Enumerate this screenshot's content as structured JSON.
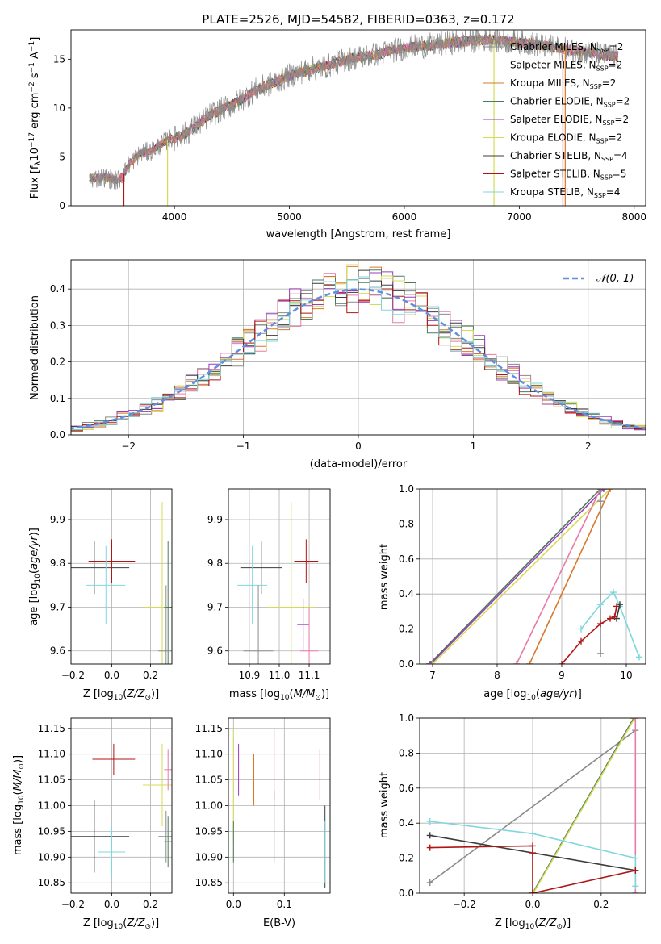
{
  "figure": {
    "title": "PLATE=2526, MJD=54582, FIBERID=0363, z=0.172"
  },
  "colors": {
    "grid": "#b0b0b0",
    "axis": "#000000",
    "normal_curve": "#5e8fde"
  },
  "series_legend": [
    {
      "name": "Chabrier MILES, N",
      "nssp": "2",
      "color": "#8a8a8a"
    },
    {
      "name": "Salpeter MILES, N",
      "nssp": "2",
      "color": "#e87aa7"
    },
    {
      "name": "Kroupa MILES, N",
      "nssp": "2",
      "color": "#d9782a"
    },
    {
      "name": "Chabrier ELODIE, N",
      "nssp": "2",
      "color": "#4c7a5a"
    },
    {
      "name": "Salpeter ELODIE, N",
      "nssp": "2",
      "color": "#9a3dbd"
    },
    {
      "name": "Kroupa ELODIE, N",
      "nssp": "2",
      "color": "#d4dc55"
    },
    {
      "name": "Chabrier STELIB, N",
      "nssp": "4",
      "color": "#3c3c3c"
    },
    {
      "name": "Salpeter STELIB, N",
      "nssp": "5",
      "color": "#b01515"
    },
    {
      "name": "Kroupa STELIB, N",
      "nssp": "4",
      "color": "#7fd6de"
    }
  ],
  "chart_data": [
    {
      "id": "spectrum",
      "type": "line",
      "xlabel": "wavelength [Angstrom, rest frame]",
      "ylabel": "Flux [f",
      "ylabel_full": "Flux [fλ10⁻¹⁷ erg cm⁻² s⁻¹ Å⁻¹]",
      "xlim": [
        3100,
        8100
      ],
      "ylim": [
        0,
        18
      ],
      "xticks": [
        4000,
        5000,
        6000,
        7000,
        8000
      ],
      "yticks": [
        0,
        5,
        10,
        15
      ],
      "grid": false,
      "legend_position": "top-right",
      "envelope_x": [
        3300,
        3400,
        3500,
        3550,
        3600,
        3700,
        3800,
        3900,
        3950,
        4000,
        4100,
        4200,
        4300,
        4400,
        4500,
        4600,
        4700,
        4800,
        4900,
        5000,
        5100,
        5200,
        5300,
        5400,
        5500,
        5600,
        5700,
        5800,
        5900,
        6000,
        6100,
        6200,
        6300,
        6400,
        6500,
        6600,
        6700,
        6800,
        6900,
        7000,
        7100,
        7200,
        7300,
        7400,
        7500,
        7600,
        7700,
        7800
      ],
      "envelope_y": [
        2.8,
        2.9,
        2.6,
        3.0,
        4.2,
        5.3,
        5.6,
        6.4,
        6.8,
        6.9,
        7.4,
        8.3,
        9.2,
        9.8,
        10.3,
        11.0,
        11.8,
        12.3,
        12.8,
        13.3,
        13.7,
        14.0,
        14.2,
        14.6,
        15.0,
        15.2,
        15.4,
        15.6,
        15.9,
        16.1,
        16.3,
        16.4,
        16.5,
        16.7,
        16.8,
        16.9,
        17.0,
        16.9,
        16.8,
        16.7,
        16.6,
        16.4,
        16.2,
        16.0,
        15.8,
        15.7,
        15.5,
        15.3
      ]
    },
    {
      "id": "residuals",
      "type": "histogram",
      "xlabel": "(data-model)/error",
      "ylabel": "Normed distribution",
      "xlim": [
        -2.5,
        2.5
      ],
      "ylim": [
        0,
        0.48
      ],
      "xticks": [
        -2,
        -1,
        0,
        1,
        2
      ],
      "yticks": [
        0.0,
        0.1,
        0.2,
        0.3,
        0.4
      ],
      "grid": true,
      "legend": "𝒩(0, 1)",
      "legend_position": "top-right",
      "bin_width": 0.1,
      "normal_mean": 0,
      "normal_sigma": 1
    },
    {
      "id": "age_vs_Z",
      "type": "scatter",
      "xlabel": "Z [log",
      "ylabel": "age  [log",
      "xlim": [
        -0.21,
        0.31
      ],
      "ylim": [
        9.57,
        9.97
      ],
      "xticks": [
        -0.2,
        0.0,
        0.2
      ],
      "yticks": [
        9.6,
        9.7,
        9.8,
        9.9
      ],
      "grid": true,
      "points": [
        {
          "series": "Chabrier STELIB",
          "x": -0.09,
          "y": 9.79,
          "ex": 0.18,
          "ey": 0.06
        },
        {
          "series": "Salpeter STELIB",
          "x": 0.0,
          "y": 9.805,
          "ex": 0.12,
          "ey": 0.05
        },
        {
          "series": "Kroupa STELIB",
          "x": -0.03,
          "y": 9.75,
          "ex": 0.1,
          "ey": 0.09
        },
        {
          "series": "Kroupa ELODIE",
          "x": 0.26,
          "y": 9.7,
          "ex": 0.1,
          "ey": 0.24
        },
        {
          "series": "Chabrier ELODIE",
          "x": 0.29,
          "y": 9.7,
          "ex": 0.02,
          "ey": 0.15
        },
        {
          "series": "Chabrier MILES",
          "x": 0.28,
          "y": 9.6,
          "ex": 0.04,
          "ey": 0.15
        }
      ]
    },
    {
      "id": "age_vs_mass",
      "type": "scatter",
      "xlabel": "mass [log",
      "xlim": [
        10.83,
        11.17
      ],
      "ylim": [
        9.57,
        9.97
      ],
      "xticks": [
        10.9,
        11.0,
        11.1
      ],
      "yticks": [
        9.6,
        9.7,
        9.8,
        9.9
      ],
      "grid": true,
      "points": [
        {
          "series": "Chabrier STELIB",
          "x": 10.94,
          "y": 9.79,
          "ex": 0.07,
          "ey": 0.06
        },
        {
          "series": "Salpeter STELIB",
          "x": 11.09,
          "y": 9.805,
          "ex": 0.04,
          "ey": 0.05
        },
        {
          "series": "Kroupa STELIB",
          "x": 10.91,
          "y": 9.75,
          "ex": 0.05,
          "ey": 0.09
        },
        {
          "series": "Kroupa ELODIE",
          "x": 11.04,
          "y": 9.7,
          "ex": 0.08,
          "ey": 0.24
        },
        {
          "series": "Salpeter ELODIE",
          "x": 11.08,
          "y": 9.66,
          "ex": 0.02,
          "ey": 0.06
        },
        {
          "series": "Salpeter MILES",
          "x": 11.1,
          "y": 9.6,
          "ex": 0.03,
          "ey": 0.1
        },
        {
          "series": "Chabrier MILES",
          "x": 10.93,
          "y": 9.6,
          "ex": 0.05,
          "ey": 0.15
        }
      ]
    },
    {
      "id": "mass_weight_vs_age",
      "type": "line",
      "xlabel": "age  [log",
      "ylabel": "mass weight",
      "xlim": [
        6.8,
        10.3
      ],
      "ylim": [
        0,
        1
      ],
      "xticks": [
        7,
        8,
        9,
        10
      ],
      "yticks": [
        0.0,
        0.2,
        0.4,
        0.6,
        0.8,
        1.0
      ],
      "grid": true,
      "series": [
        {
          "name": "Chabrier ELODIE",
          "x": [
            6.95,
            9.6
          ],
          "y": [
            0,
            1
          ]
        },
        {
          "name": "Salpeter ELODIE",
          "x": [
            6.97,
            9.65
          ],
          "y": [
            0,
            1
          ]
        },
        {
          "name": "Kroupa ELODIE",
          "x": [
            7.0,
            9.75
          ],
          "y": [
            0,
            1
          ]
        },
        {
          "name": "Salpeter MILES",
          "x": [
            8.3,
            9.6
          ],
          "y": [
            0,
            1
          ]
        },
        {
          "name": "Kroupa MILES",
          "x": [
            8.5,
            9.75
          ],
          "y": [
            0,
            1
          ]
        },
        {
          "name": "Chabrier MILES",
          "x": [
            9.6,
            9.6,
            9.6
          ],
          "y": [
            0.06,
            0.93,
            1.0
          ]
        },
        {
          "name": "Kroupa STELIB",
          "x": [
            9.3,
            9.6,
            9.8,
            9.9,
            10.2
          ],
          "y": [
            0.2,
            0.34,
            0.41,
            0.33,
            0.04
          ]
        },
        {
          "name": "Salpeter STELIB",
          "x": [
            9.0,
            9.3,
            9.6,
            9.75,
            9.82,
            9.85
          ],
          "y": [
            0.0,
            0.13,
            0.23,
            0.26,
            0.27,
            0.33
          ]
        },
        {
          "name": "Chabrier STELIB",
          "x": [
            9.85,
            9.9
          ],
          "y": [
            0.26,
            0.34
          ]
        }
      ]
    },
    {
      "id": "mass_vs_Z",
      "type": "scatter",
      "xlabel": "Z [log",
      "ylabel": "mass [log",
      "xlim": [
        -0.21,
        0.31
      ],
      "ylim": [
        10.83,
        11.17
      ],
      "xticks": [
        -0.2,
        0.0,
        0.2
      ],
      "yticks": [
        10.85,
        10.9,
        10.95,
        11.0,
        11.05,
        11.1,
        11.15
      ],
      "grid": true,
      "points": [
        {
          "series": "Chabrier STELIB",
          "x": -0.09,
          "y": 10.94,
          "ex": 0.18,
          "ey": 0.07
        },
        {
          "series": "Kroupa STELIB",
          "x": 0.0,
          "y": 10.91,
          "ex": 0.07,
          "ey": 0.05
        },
        {
          "series": "Salpeter STELIB",
          "x": 0.01,
          "y": 11.09,
          "ex": 0.11,
          "ey": 0.03
        },
        {
          "series": "Kroupa ELODIE",
          "x": 0.26,
          "y": 11.04,
          "ex": 0.1,
          "ey": 0.08
        },
        {
          "series": "Salpeter MILES",
          "x": 0.29,
          "y": 11.07,
          "ex": 0.02,
          "ey": 0.04
        },
        {
          "series": "Chabrier MILES",
          "x": 0.28,
          "y": 10.94,
          "ex": 0.04,
          "ey": 0.05
        },
        {
          "series": "Chabrier ELODIE",
          "x": 0.29,
          "y": 10.93,
          "ex": 0.02,
          "ey": 0.05
        }
      ]
    },
    {
      "id": "mass_vs_EBV",
      "type": "scatter",
      "xlabel": "E(B-V)",
      "xlim": [
        -0.01,
        0.19
      ],
      "ylim": [
        10.83,
        11.17
      ],
      "xticks": [
        0.0,
        0.1
      ],
      "yticks": [
        10.85,
        10.9,
        10.95,
        11.0,
        11.05,
        11.1,
        11.15
      ],
      "grid": true,
      "points": [
        {
          "series": "Kroupa ELODIE",
          "x": 0.0,
          "y": 11.04,
          "ex": 0.0,
          "ey": 0.11
        },
        {
          "series": "Chabrier ELODIE",
          "x": 0.0,
          "y": 10.93,
          "ex": 0.0,
          "ey": 0.04
        },
        {
          "series": "Salpeter ELODIE",
          "x": 0.01,
          "y": 11.07,
          "ex": 0.0,
          "ey": 0.05
        },
        {
          "series": "Kroupa MILES",
          "x": 0.04,
          "y": 11.05,
          "ex": 0.0,
          "ey": 0.05
        },
        {
          "series": "Salpeter MILES",
          "x": 0.08,
          "y": 11.08,
          "ex": 0.0,
          "ey": 0.07
        },
        {
          "series": "Chabrier MILES",
          "x": 0.08,
          "y": 10.96,
          "ex": 0.0,
          "ey": 0.07
        },
        {
          "series": "Salpeter STELIB",
          "x": 0.17,
          "y": 11.06,
          "ex": 0.0,
          "ey": 0.05
        },
        {
          "series": "Chabrier STELIB",
          "x": 0.18,
          "y": 10.92,
          "ex": 0.0,
          "ey": 0.08
        },
        {
          "series": "Kroupa STELIB",
          "x": 0.18,
          "y": 10.91,
          "ex": 0.0,
          "ey": 0.06
        }
      ]
    },
    {
      "id": "mass_weight_vs_Z",
      "type": "line",
      "xlabel": "Z [log",
      "ylabel": "mass weight",
      "xlim": [
        -0.33,
        0.33
      ],
      "ylim": [
        0,
        1
      ],
      "xticks": [
        -0.2,
        0.0,
        0.2
      ],
      "yticks": [
        0.0,
        0.2,
        0.4,
        0.6,
        0.8,
        1.0
      ],
      "grid": true,
      "series": [
        {
          "name": "Chabrier MILES",
          "x": [
            -0.3,
            0.3
          ],
          "y": [
            0.06,
            0.93
          ]
        },
        {
          "name": "Chabrier ELODIE",
          "x": [
            0.0,
            0.295
          ],
          "y": [
            0,
            1
          ]
        },
        {
          "name": "Kroupa ELODIE",
          "x": [
            0.002,
            0.298
          ],
          "y": [
            0,
            1
          ]
        },
        {
          "name": "Salpeter MILES",
          "x": [
            0.3,
            0.3
          ],
          "y": [
            0.0,
            1.0
          ]
        },
        {
          "name": "Kroupa STELIB",
          "x": [
            -0.3,
            0.0,
            0.3,
            0.3
          ],
          "y": [
            0.41,
            0.34,
            0.2,
            0.04
          ]
        },
        {
          "name": "Chabrier STELIB",
          "x": [
            -0.3,
            0.3
          ],
          "y": [
            0.33,
            0.13
          ]
        },
        {
          "name": "Salpeter STELIB",
          "x": [
            -0.3,
            0.0,
            0.0,
            0.0,
            0.3
          ],
          "y": [
            0.26,
            0.27,
            0.23,
            0.0,
            0.13
          ]
        }
      ]
    }
  ]
}
